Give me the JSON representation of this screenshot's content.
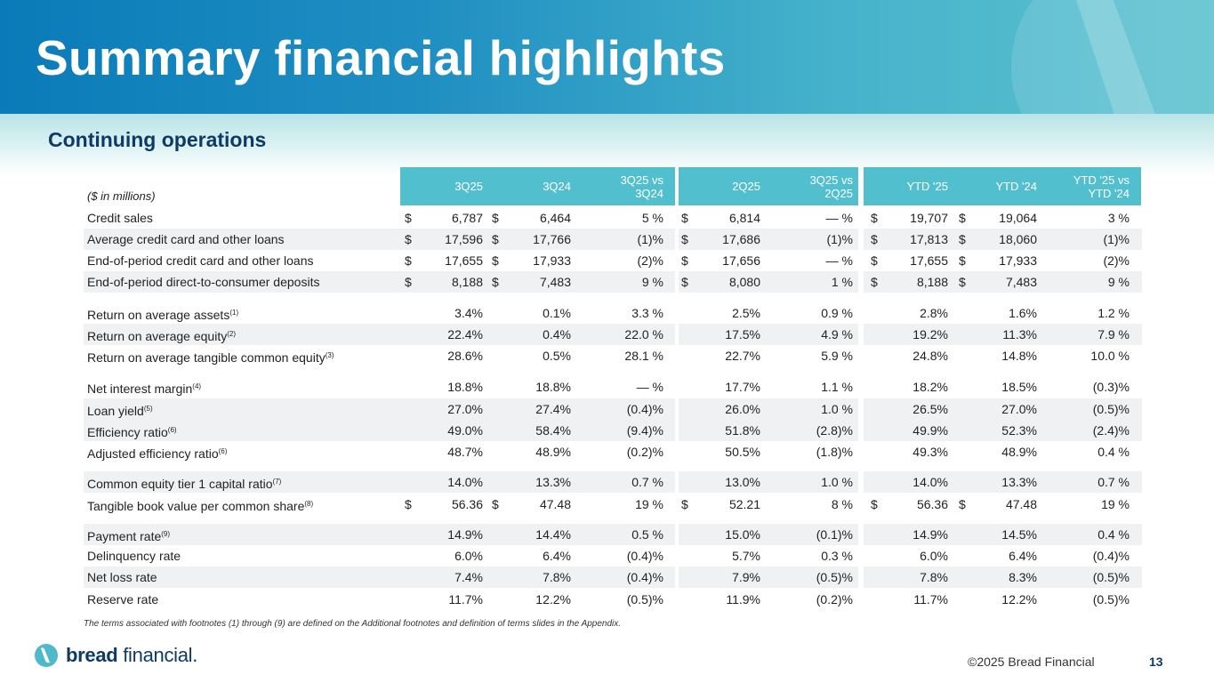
{
  "header": {
    "title": "Summary financial highlights",
    "subtitle": "Continuing operations"
  },
  "table": {
    "unit_label": "($ in millions)",
    "columns": [
      "3Q25",
      "3Q24",
      "3Q25 vs\n3Q24",
      "2Q25",
      "3Q25 vs\n2Q25",
      "YTD '25",
      "YTD '24",
      "YTD '25 vs\nYTD '24"
    ],
    "rows": [
      {
        "label": "Credit sales",
        "sup": "",
        "values": [
          "6,787",
          "6,464",
          "5 %",
          "6,814",
          "— %",
          "19,707",
          "19,064",
          "3 %"
        ],
        "dollar": [
          true,
          true,
          false,
          true,
          false,
          true,
          true,
          false
        ]
      },
      {
        "label": "Average credit card and other loans",
        "sup": "",
        "values": [
          "17,596",
          "17,766",
          "(1)%",
          "17,686",
          "(1)%",
          "17,813",
          "18,060",
          "(1)%"
        ],
        "dollar": [
          true,
          true,
          false,
          true,
          false,
          true,
          true,
          false
        ]
      },
      {
        "label": "End-of-period credit card and other loans",
        "sup": "",
        "values": [
          "17,655",
          "17,933",
          "(2)%",
          "17,656",
          "— %",
          "17,655",
          "17,933",
          "(2)%"
        ],
        "dollar": [
          true,
          true,
          false,
          true,
          false,
          true,
          true,
          false
        ]
      },
      {
        "label": "End-of-period direct-to-consumer deposits",
        "sup": "",
        "values": [
          "8,188",
          "7,483",
          "9 %",
          "8,080",
          "1 %",
          "8,188",
          "7,483",
          "9 %"
        ],
        "dollar": [
          true,
          true,
          false,
          true,
          false,
          true,
          true,
          false
        ]
      },
      {
        "label": "Return on average assets",
        "sup": "(1)",
        "values": [
          "3.4%",
          "0.1%",
          "3.3 %",
          "2.5%",
          "0.9 %",
          "2.8%",
          "1.6%",
          "1.2 %"
        ],
        "dollar": [
          false,
          false,
          false,
          false,
          false,
          false,
          false,
          false
        ]
      },
      {
        "label": "Return on average equity",
        "sup": "(2)",
        "values": [
          "22.4%",
          "0.4%",
          "22.0 %",
          "17.5%",
          "4.9 %",
          "19.2%",
          "11.3%",
          "7.9 %"
        ],
        "dollar": [
          false,
          false,
          false,
          false,
          false,
          false,
          false,
          false
        ]
      },
      {
        "label": "Return on average tangible common equity",
        "sup": "(3)",
        "values": [
          "28.6%",
          "0.5%",
          "28.1 %",
          "22.7%",
          "5.9 %",
          "24.8%",
          "14.8%",
          "10.0 %"
        ],
        "dollar": [
          false,
          false,
          false,
          false,
          false,
          false,
          false,
          false
        ]
      },
      {
        "label": "Net interest margin",
        "sup": "(4)",
        "values": [
          "18.8%",
          "18.8%",
          "— %",
          "17.7%",
          "1.1 %",
          "18.2%",
          "18.5%",
          "(0.3)%"
        ],
        "dollar": [
          false,
          false,
          false,
          false,
          false,
          false,
          false,
          false
        ]
      },
      {
        "label": "Loan yield",
        "sup": "(5)",
        "values": [
          "27.0%",
          "27.4%",
          "(0.4)%",
          "26.0%",
          "1.0 %",
          "26.5%",
          "27.0%",
          "(0.5)%"
        ],
        "dollar": [
          false,
          false,
          false,
          false,
          false,
          false,
          false,
          false
        ]
      },
      {
        "label": "Efficiency ratio",
        "sup": "(6)",
        "values": [
          "49.0%",
          "58.4%",
          "(9.4)%",
          "51.8%",
          "(2.8)%",
          "49.9%",
          "52.3%",
          "(2.4)%"
        ],
        "dollar": [
          false,
          false,
          false,
          false,
          false,
          false,
          false,
          false
        ]
      },
      {
        "label": "Adjusted efficiency ratio",
        "sup": "(6)",
        "values": [
          "48.7%",
          "48.9%",
          "(0.2)%",
          "50.5%",
          "(1.8)%",
          "49.3%",
          "48.9%",
          "0.4 %"
        ],
        "dollar": [
          false,
          false,
          false,
          false,
          false,
          false,
          false,
          false
        ]
      },
      {
        "label": "Common equity tier 1 capital ratio",
        "sup": "(7)",
        "values": [
          "14.0%",
          "13.3%",
          "0.7 %",
          "13.0%",
          "1.0 %",
          "14.0%",
          "13.3%",
          "0.7 %"
        ],
        "dollar": [
          false,
          false,
          false,
          false,
          false,
          false,
          false,
          false
        ]
      },
      {
        "label": "Tangible book value per common share",
        "sup": "(8)",
        "values": [
          "56.36",
          "47.48",
          "19 %",
          "52.21",
          "8 %",
          "56.36",
          "47.48",
          "19 %"
        ],
        "dollar": [
          true,
          true,
          false,
          true,
          false,
          true,
          true,
          false
        ]
      },
      {
        "label": "Payment rate",
        "sup": "(9)",
        "values": [
          "14.9%",
          "14.4%",
          "0.5 %",
          "15.0%",
          "(0.1)%",
          "14.9%",
          "14.5%",
          "0.4 %"
        ],
        "dollar": [
          false,
          false,
          false,
          false,
          false,
          false,
          false,
          false
        ]
      },
      {
        "label": "Delinquency rate",
        "sup": "",
        "values": [
          "6.0%",
          "6.4%",
          "(0.4)%",
          "5.7%",
          "0.3 %",
          "6.0%",
          "6.4%",
          "(0.4)%"
        ],
        "dollar": [
          false,
          false,
          false,
          false,
          false,
          false,
          false,
          false
        ]
      },
      {
        "label": "Net loss rate",
        "sup": "",
        "values": [
          "7.4%",
          "7.8%",
          "(0.4)%",
          "7.9%",
          "(0.5)%",
          "7.8%",
          "8.3%",
          "(0.5)%"
        ],
        "dollar": [
          false,
          false,
          false,
          false,
          false,
          false,
          false,
          false
        ]
      },
      {
        "label": "Reserve rate",
        "sup": "",
        "values": [
          "11.7%",
          "12.2%",
          "(0.5)%",
          "11.9%",
          "(0.2)%",
          "11.7%",
          "12.2%",
          "(0.5)%"
        ],
        "dollar": [
          false,
          false,
          false,
          false,
          false,
          false,
          false,
          false
        ]
      }
    ],
    "currency_symbol": "$"
  },
  "footnote": "The terms associated with footnotes (1) through (9) are defined on the Additional footnotes and definition of terms slides in the Appendix.",
  "footer": {
    "brand_bold": "bread",
    "brand_light": " financial.",
    "copyright": "©2025 Bread Financial",
    "page_number": "13"
  },
  "colors": {
    "header_band": "#52bfcf",
    "title_text": "#ffffff",
    "subtitle_text": "#0d3b66",
    "shade": "#f0f1f2"
  }
}
